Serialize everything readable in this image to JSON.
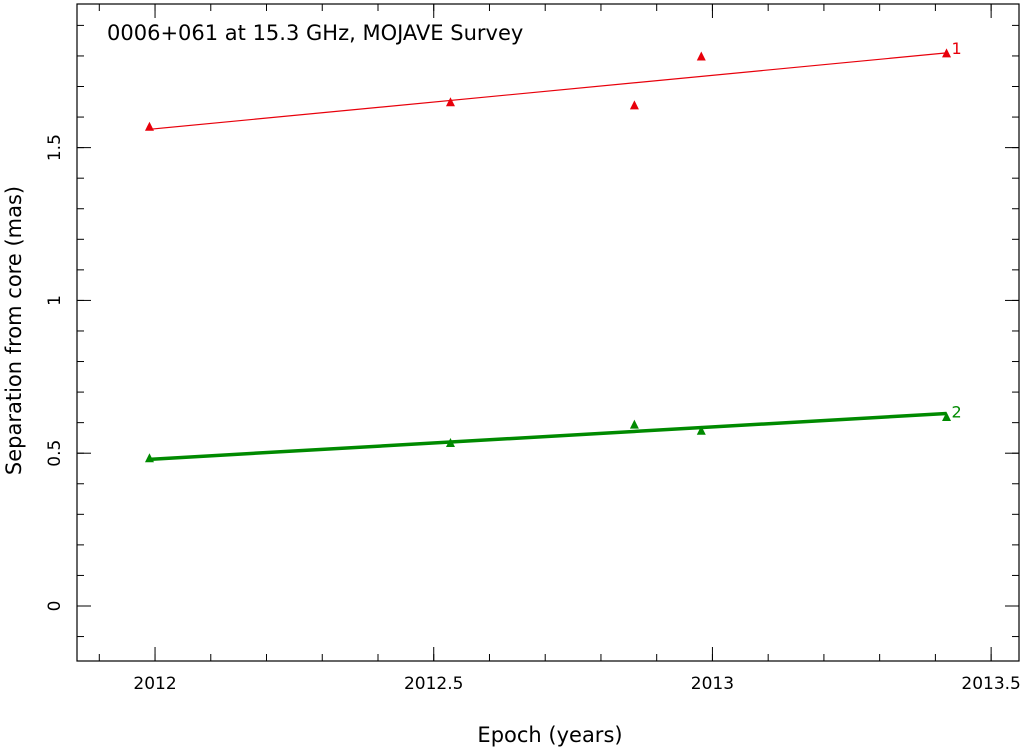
{
  "chart_data": {
    "type": "scatter",
    "title": "0006+061 at 15.3 GHz, MOJAVE Survey",
    "xlabel": "Epoch (years)",
    "ylabel": "Separation from core (mas)",
    "xlim": [
      2011.86,
      2013.55
    ],
    "ylim": [
      -0.18,
      1.97
    ],
    "x_ticks": [
      2012,
      2012.5,
      2013,
      2013.5
    ],
    "x_tick_labels": [
      "2012",
      "2012.5",
      "2013",
      "2013.5"
    ],
    "y_ticks": [
      0,
      0.5,
      1,
      1.5
    ],
    "y_tick_labels": [
      "0",
      "0.5",
      "1",
      "1.5"
    ],
    "x_minor_step": 0.1,
    "y_minor_step": 0.1,
    "grid": false,
    "series": [
      {
        "label": "1",
        "color": "#e8000b",
        "marker": "triangle",
        "points": [
          {
            "x": 2011.99,
            "y": 1.57
          },
          {
            "x": 2012.53,
            "y": 1.65
          },
          {
            "x": 2012.86,
            "y": 1.64
          },
          {
            "x": 2012.98,
            "y": 1.8
          },
          {
            "x": 2013.42,
            "y": 1.81
          }
        ],
        "fit": {
          "x": [
            2011.99,
            2013.42
          ],
          "y": [
            1.56,
            1.81
          ]
        },
        "fit_width": "thin"
      },
      {
        "label": "2",
        "color": "#008a00",
        "marker": "triangle",
        "points": [
          {
            "x": 2011.99,
            "y": 0.485
          },
          {
            "x": 2012.53,
            "y": 0.535
          },
          {
            "x": 2012.86,
            "y": 0.595
          },
          {
            "x": 2012.98,
            "y": 0.575
          },
          {
            "x": 2013.42,
            "y": 0.62
          }
        ],
        "fit": {
          "x": [
            2011.99,
            2013.42
          ],
          "y": [
            0.48,
            0.63
          ]
        },
        "fit_width": "thick"
      }
    ]
  }
}
